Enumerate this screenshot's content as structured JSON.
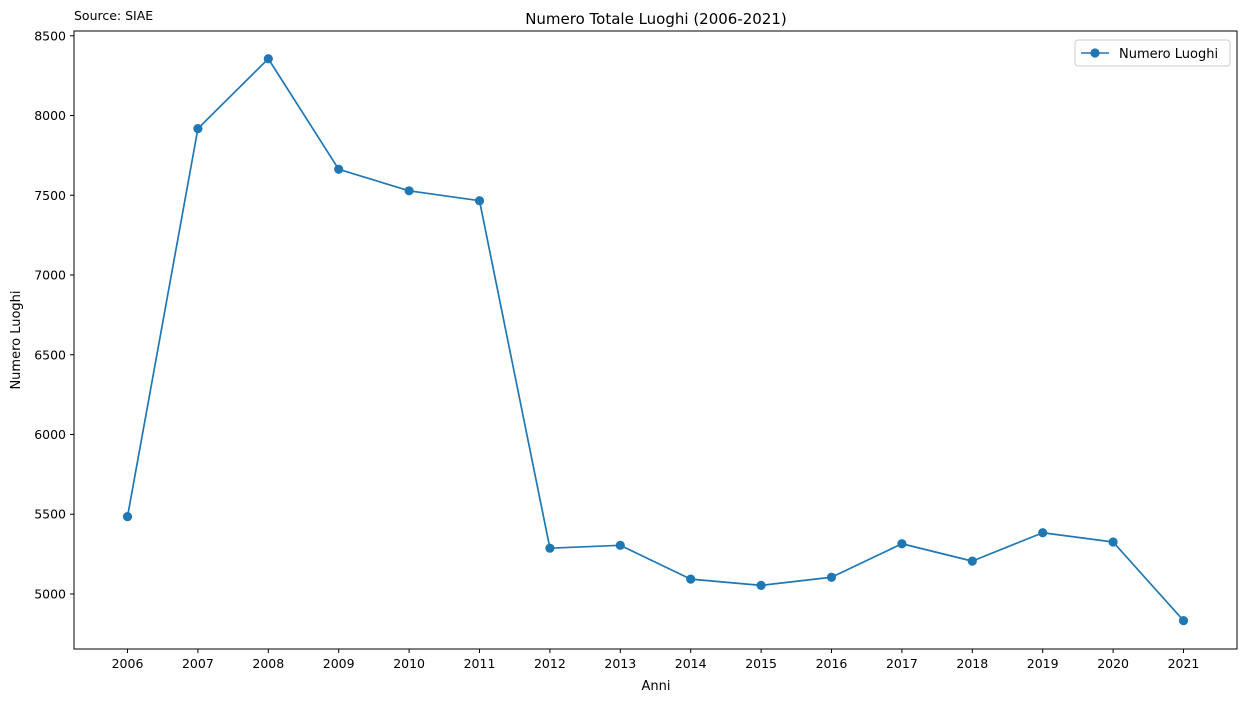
{
  "chart_data": {
    "type": "line",
    "title": "Numero Totale Luoghi (2006-2021)",
    "source": "Source: SIAE",
    "xlabel": "Anni",
    "ylabel": "Numero Luoghi",
    "x": [
      2006,
      2007,
      2008,
      2009,
      2010,
      2011,
      2012,
      2013,
      2014,
      2015,
      2016,
      2017,
      2018,
      2019,
      2020,
      2021
    ],
    "series": [
      {
        "name": "Numero Luoghi",
        "color": "#1f77b4",
        "marker": "circle",
        "values": [
          5485,
          7918,
          8356,
          7663,
          7528,
          7466,
          5287,
          5305,
          5093,
          5054,
          5105,
          5315,
          5206,
          5384,
          5326,
          4833
        ]
      }
    ],
    "yticks": [
      5000,
      5500,
      6000,
      6500,
      7000,
      7500,
      8000,
      8500
    ],
    "ylim": [
      4655,
      8530
    ],
    "grid": false,
    "legend_position": "top-right"
  }
}
